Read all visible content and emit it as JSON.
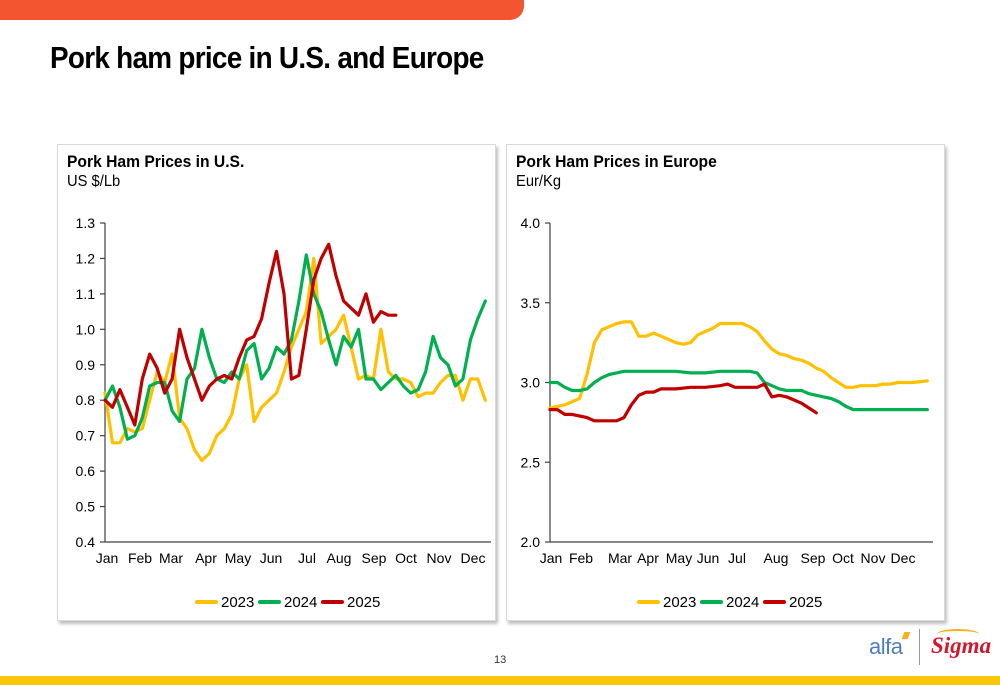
{
  "page": {
    "title": "Pork ham price in U.S. and Europe",
    "page_number": "13",
    "logos": {
      "left": "alfa",
      "right": "Sigma"
    },
    "colors": {
      "top_bar": "#f25530",
      "bottom_bar": "#fcc70b"
    }
  },
  "chart_data": [
    {
      "type": "line",
      "title": "Pork Ham Prices in U.S.",
      "subtitle": "US $/Lb",
      "xlabel": "",
      "ylabel": "US $/Lb",
      "ylim": [
        0.4,
        1.3
      ],
      "yticks": [
        "0.4",
        "0.5",
        "0.6",
        "0.7",
        "0.8",
        "0.9",
        "1.0",
        "1.1",
        "1.2",
        "1.3"
      ],
      "ytick_values": [
        0.4,
        0.5,
        0.6,
        0.7,
        0.8,
        0.9,
        1.0,
        1.1,
        1.2,
        1.3
      ],
      "categories": [
        "Jan",
        "Feb",
        "Mar",
        "Apr",
        "May",
        "Jun",
        "Jul",
        "Aug",
        "Sep",
        "Oct",
        "Nov",
        "Dec"
      ],
      "grid": false,
      "legend": "bottom",
      "x_unit": "week of year",
      "series": [
        {
          "name": "2023",
          "color": "#ffc000",
          "x": [
            1,
            2,
            3,
            4,
            5,
            6,
            7,
            8,
            9,
            10,
            11,
            12,
            13,
            14,
            15,
            16,
            17,
            18,
            19,
            20,
            21,
            22,
            23,
            24,
            25,
            26,
            27,
            28,
            29,
            30,
            31,
            32,
            33,
            34,
            35,
            36,
            37,
            38,
            39,
            40,
            41,
            42,
            43,
            44,
            45,
            46,
            47,
            48,
            49,
            50,
            51,
            52
          ],
          "values": [
            0.82,
            0.68,
            0.68,
            0.72,
            0.71,
            0.72,
            0.8,
            0.88,
            0.85,
            0.93,
            0.75,
            0.72,
            0.66,
            0.63,
            0.65,
            0.7,
            0.72,
            0.76,
            0.86,
            0.9,
            0.74,
            0.78,
            0.8,
            0.82,
            0.88,
            0.95,
            1.0,
            1.05,
            1.2,
            0.96,
            0.98,
            1.0,
            1.04,
            0.95,
            0.86,
            0.87,
            0.86,
            1.0,
            0.88,
            0.86,
            0.86,
            0.85,
            0.81,
            0.82,
            0.82,
            0.85,
            0.87,
            0.87,
            0.8,
            0.86,
            0.86,
            0.8
          ]
        },
        {
          "name": "2024",
          "color": "#00b050",
          "x": [
            1,
            2,
            3,
            4,
            5,
            6,
            7,
            8,
            9,
            10,
            11,
            12,
            13,
            14,
            15,
            16,
            17,
            18,
            19,
            20,
            21,
            22,
            23,
            24,
            25,
            26,
            27,
            28,
            29,
            30,
            31,
            32,
            33,
            34,
            35,
            36,
            37,
            38,
            39,
            40,
            41,
            42,
            43,
            44,
            45,
            46,
            47,
            48,
            49,
            50,
            51,
            52
          ],
          "values": [
            0.8,
            0.84,
            0.78,
            0.69,
            0.7,
            0.75,
            0.84,
            0.85,
            0.85,
            0.77,
            0.74,
            0.86,
            0.89,
            1.0,
            0.92,
            0.86,
            0.85,
            0.88,
            0.86,
            0.94,
            0.96,
            0.86,
            0.89,
            0.95,
            0.93,
            0.97,
            1.08,
            1.21,
            1.1,
            1.05,
            0.97,
            0.9,
            0.98,
            0.95,
            1.0,
            0.86,
            0.86,
            0.83,
            0.85,
            0.87,
            0.84,
            0.82,
            0.83,
            0.88,
            0.98,
            0.92,
            0.9,
            0.84,
            0.86,
            0.97,
            1.03,
            1.08
          ]
        },
        {
          "name": "2025",
          "color": "#c00000",
          "x": [
            1,
            2,
            3,
            4,
            5,
            6,
            7,
            8,
            9,
            10,
            11,
            12,
            13,
            14,
            15,
            16,
            17,
            18,
            19,
            20,
            21,
            22,
            23,
            24,
            25,
            26,
            27,
            28,
            29,
            30,
            31,
            32,
            33,
            34,
            35,
            36,
            37,
            38,
            39,
            40
          ],
          "values": [
            0.8,
            0.78,
            0.83,
            0.78,
            0.73,
            0.86,
            0.93,
            0.89,
            0.82,
            0.86,
            1.0,
            0.92,
            0.86,
            0.8,
            0.84,
            0.86,
            0.87,
            0.86,
            0.92,
            0.97,
            0.98,
            1.03,
            1.13,
            1.22,
            1.1,
            0.86,
            0.87,
            1.0,
            1.14,
            1.2,
            1.24,
            1.15,
            1.08,
            1.06,
            1.04,
            1.1,
            1.02,
            1.05,
            1.04,
            1.04
          ]
        }
      ]
    },
    {
      "type": "line",
      "title": "Pork Ham Prices in Europe",
      "subtitle": "Eur/Kg",
      "xlabel": "",
      "ylabel": "Eur/Kg",
      "ylim": [
        2.0,
        4.0
      ],
      "yticks": [
        "2.0",
        "2.5",
        "3.0",
        "3.5",
        "4.0"
      ],
      "ytick_values": [
        2.0,
        2.5,
        3.0,
        3.5,
        4.0
      ],
      "categories": [
        "Jan",
        "Feb",
        "Mar",
        "Apr",
        "May",
        "Jun",
        "Jul",
        "Aug",
        "Sep",
        "Oct",
        "Nov",
        "Dec"
      ],
      "grid": false,
      "legend": "bottom",
      "x_unit": "week of year",
      "series": [
        {
          "name": "2023",
          "color": "#ffc000",
          "x": [
            1,
            3,
            5,
            6,
            7,
            8,
            9,
            10,
            11,
            12,
            13,
            14,
            15,
            16,
            17,
            18,
            19,
            20,
            21,
            22,
            23,
            24,
            25,
            26,
            27,
            28,
            29,
            30,
            31,
            32,
            33,
            34,
            35,
            36,
            37,
            38,
            39,
            40,
            41,
            42,
            43,
            44,
            45,
            46,
            47,
            48,
            50,
            52
          ],
          "values": [
            2.84,
            2.86,
            2.9,
            3.05,
            3.25,
            3.33,
            3.35,
            3.37,
            3.38,
            3.38,
            3.29,
            3.29,
            3.31,
            3.29,
            3.27,
            3.25,
            3.24,
            3.25,
            3.3,
            3.32,
            3.34,
            3.37,
            3.37,
            3.37,
            3.37,
            3.35,
            3.32,
            3.26,
            3.21,
            3.18,
            3.17,
            3.15,
            3.14,
            3.12,
            3.09,
            3.07,
            3.03,
            3.0,
            2.97,
            2.97,
            2.98,
            2.98,
            2.98,
            2.99,
            2.99,
            3.0,
            3.0,
            3.01
          ]
        },
        {
          "name": "2024",
          "color": "#00b050",
          "x": [
            1,
            2,
            3,
            4,
            5,
            6,
            7,
            8,
            9,
            10,
            11,
            12,
            14,
            16,
            18,
            20,
            22,
            24,
            26,
            28,
            29,
            30,
            31,
            32,
            33,
            34,
            35,
            36,
            37,
            38,
            39,
            40,
            41,
            42,
            44,
            46,
            48,
            50,
            52
          ],
          "values": [
            3.0,
            3.0,
            2.97,
            2.95,
            2.95,
            2.96,
            3.0,
            3.03,
            3.05,
            3.06,
            3.07,
            3.07,
            3.07,
            3.07,
            3.07,
            3.06,
            3.06,
            3.07,
            3.07,
            3.07,
            3.06,
            3.0,
            2.98,
            2.96,
            2.95,
            2.95,
            2.95,
            2.93,
            2.92,
            2.91,
            2.9,
            2.88,
            2.85,
            2.83,
            2.83,
            2.83,
            2.83,
            2.83,
            2.83
          ]
        },
        {
          "name": "2025",
          "color": "#c00000",
          "x": [
            1,
            2,
            3,
            4,
            5,
            6,
            7,
            8,
            9,
            10,
            11,
            12,
            13,
            14,
            15,
            16,
            17,
            18,
            20,
            22,
            24,
            25,
            26,
            27,
            28,
            29,
            30,
            31,
            32,
            33,
            34,
            35,
            36,
            37
          ],
          "values": [
            2.83,
            2.83,
            2.8,
            2.8,
            2.79,
            2.78,
            2.76,
            2.76,
            2.76,
            2.76,
            2.78,
            2.86,
            2.92,
            2.94,
            2.94,
            2.96,
            2.96,
            2.96,
            2.97,
            2.97,
            2.98,
            2.99,
            2.97,
            2.97,
            2.97,
            2.97,
            2.99,
            2.91,
            2.92,
            2.91,
            2.89,
            2.87,
            2.84,
            2.81
          ]
        }
      ]
    }
  ]
}
